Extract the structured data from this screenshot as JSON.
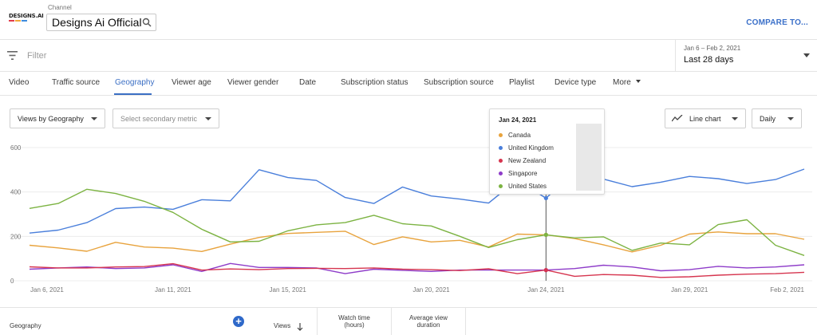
{
  "header": {
    "logo_text": "DESIGNS.AI",
    "channel_label": "Channel",
    "channel_name": "Designs Ai Official",
    "compare_label": "COMPARE TO..."
  },
  "filter": {
    "placeholder": "Filter",
    "date_range": "Jan 6 – Feb 2, 2021",
    "date_label": "Last 28 days"
  },
  "tabs": [
    {
      "label": "Video",
      "active": false
    },
    {
      "label": "Traffic source",
      "active": false
    },
    {
      "label": "Geography",
      "active": true
    },
    {
      "label": "Viewer age",
      "active": false
    },
    {
      "label": "Viewer gender",
      "active": false
    },
    {
      "label": "Date",
      "active": false
    },
    {
      "label": "Subscription status",
      "active": false
    },
    {
      "label": "Subscription source",
      "active": false
    },
    {
      "label": "Playlist",
      "active": false
    },
    {
      "label": "Device type",
      "active": false
    },
    {
      "label": "More",
      "active": false
    }
  ],
  "controls": {
    "primary_metric": "Views by Geography",
    "secondary_metric": "Select secondary metric",
    "chart_type": "Line chart",
    "granularity": "Daily"
  },
  "tooltip": {
    "date": "Jan 24, 2021",
    "items": [
      {
        "label": "Canada",
        "color": "#e8a33d"
      },
      {
        "label": "United Kingdom",
        "color": "#4a7fdb"
      },
      {
        "label": "New Zealand",
        "color": "#d6354f"
      },
      {
        "label": "Singapore",
        "color": "#8e3cc9"
      },
      {
        "label": "United States",
        "color": "#7cb342"
      }
    ]
  },
  "table_header": {
    "geography": "Geography",
    "views": "Views",
    "watch_time": "Watch time",
    "watch_time_unit": "(hours)",
    "avg_view_duration": "Average view",
    "avg_view_duration_2": "duration"
  },
  "chart_data": {
    "type": "line",
    "ylim": [
      0,
      600
    ],
    "yticks": [
      "0",
      "200",
      "400",
      "600"
    ],
    "xtick_labels": [
      {
        "index": 0,
        "label": "Jan 6, 2021"
      },
      {
        "index": 5,
        "label": "Jan 11, 2021"
      },
      {
        "index": 9,
        "label": "Jan 15, 2021"
      },
      {
        "index": 14,
        "label": "Jan 20, 2021"
      },
      {
        "index": 18,
        "label": "Jan 24, 2021"
      },
      {
        "index": 23,
        "label": "Jan 29, 2021"
      },
      {
        "index": 27,
        "label": "Feb 2, 2021"
      }
    ],
    "highlight_index": 18,
    "x": [
      "Jan 6",
      "Jan 7",
      "Jan 8",
      "Jan 9",
      "Jan 10",
      "Jan 11",
      "Jan 12",
      "Jan 13",
      "Jan 14",
      "Jan 15",
      "Jan 16",
      "Jan 17",
      "Jan 18",
      "Jan 19",
      "Jan 20",
      "Jan 21",
      "Jan 22",
      "Jan 23",
      "Jan 24",
      "Jan 25",
      "Jan 26",
      "Jan 27",
      "Jan 28",
      "Jan 29",
      "Jan 30",
      "Jan 31",
      "Feb 1",
      "Feb 2"
    ],
    "series": [
      {
        "name": "United Kingdom",
        "color": "#4a7fdb",
        "values": [
          215,
          228,
          262,
          325,
          332,
          322,
          365,
          360,
          500,
          465,
          452,
          375,
          348,
          422,
          382,
          368,
          350,
          455,
          372,
          492,
          458,
          424,
          444,
          470,
          460,
          438,
          456,
          503
        ]
      },
      {
        "name": "Canada",
        "color": "#e8a33d",
        "values": [
          160,
          148,
          133,
          173,
          152,
          147,
          132,
          165,
          195,
          213,
          218,
          223,
          163,
          198,
          175,
          182,
          152,
          210,
          207,
          190,
          162,
          130,
          160,
          210,
          220,
          212,
          212,
          187
        ]
      },
      {
        "name": "United States",
        "color": "#7cb342",
        "values": [
          326,
          348,
          412,
          393,
          358,
          308,
          232,
          175,
          178,
          225,
          252,
          262,
          295,
          257,
          247,
          200,
          150,
          185,
          207,
          193,
          198,
          137,
          170,
          162,
          253,
          275,
          160,
          114
        ]
      },
      {
        "name": "Singapore",
        "color": "#8e3cc9",
        "values": [
          52,
          58,
          62,
          55,
          58,
          72,
          42,
          78,
          60,
          60,
          58,
          32,
          52,
          47,
          42,
          48,
          48,
          48,
          48,
          55,
          70,
          62,
          45,
          50,
          65,
          58,
          62,
          72
        ]
      },
      {
        "name": "New Zealand",
        "color": "#d6354f",
        "values": [
          63,
          58,
          58,
          62,
          64,
          77,
          48,
          53,
          50,
          55,
          56,
          55,
          58,
          52,
          50,
          46,
          54,
          32,
          48,
          20,
          28,
          25,
          15,
          18,
          25,
          30,
          32,
          38
        ]
      }
    ]
  }
}
